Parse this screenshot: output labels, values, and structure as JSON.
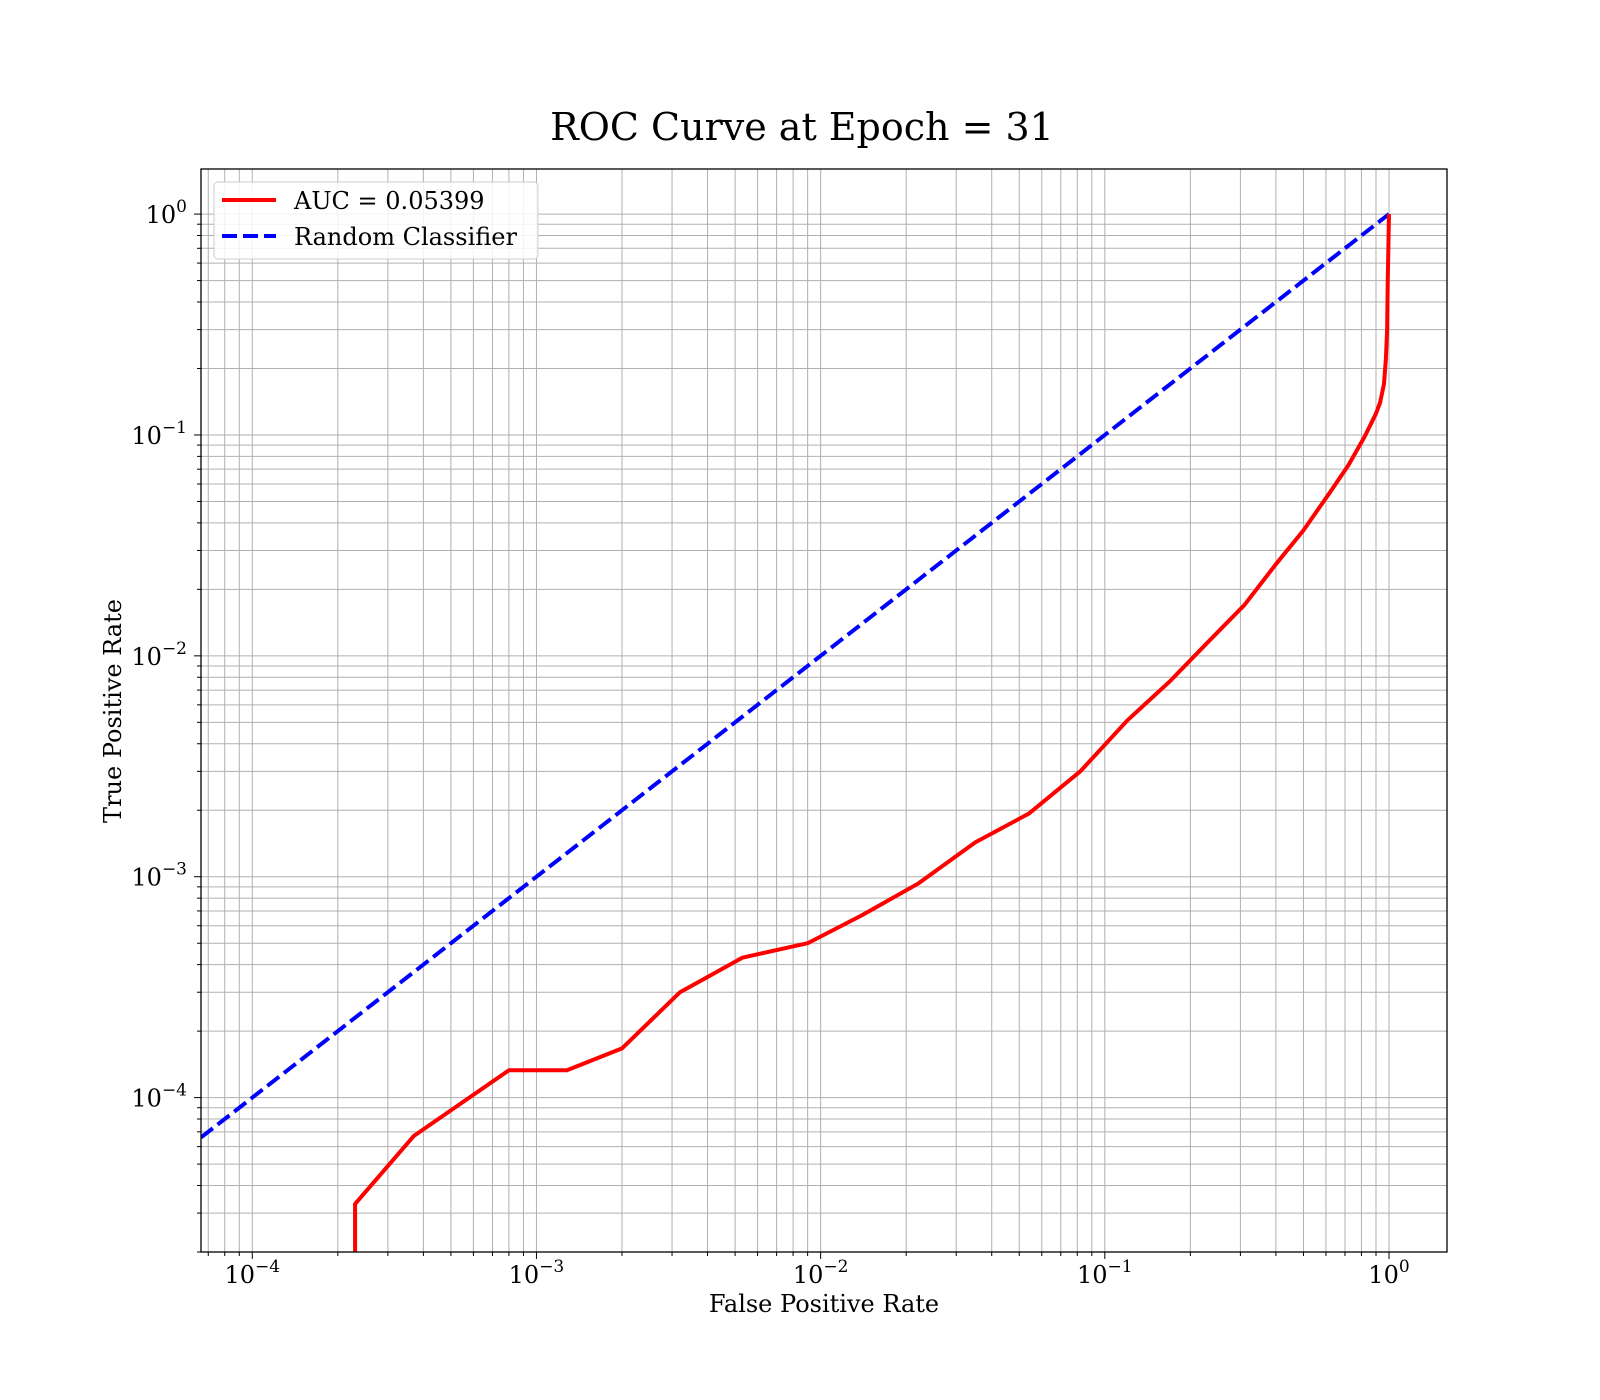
{
  "chart_data": {
    "type": "line",
    "title": "ROC Curve at Epoch = 31",
    "xlabel": "False Positive Rate",
    "ylabel": "True Positive Rate",
    "xscale": "log",
    "yscale": "log",
    "xlim": [
      6.6e-05,
      1.6
    ],
    "ylim": [
      2e-05,
      1.6
    ],
    "grid": true,
    "grid_which": "both",
    "legend_position": "top-left",
    "x_ticks": [
      {
        "value": 0.0001,
        "base": "10",
        "exp": "−4"
      },
      {
        "value": 0.001,
        "base": "10",
        "exp": "−3"
      },
      {
        "value": 0.01,
        "base": "10",
        "exp": "−2"
      },
      {
        "value": 0.1,
        "base": "10",
        "exp": "−1"
      },
      {
        "value": 1,
        "base": "10",
        "exp": "0"
      }
    ],
    "y_ticks": [
      {
        "value": 0.0001,
        "base": "10",
        "exp": "−4"
      },
      {
        "value": 0.001,
        "base": "10",
        "exp": "−3"
      },
      {
        "value": 0.01,
        "base": "10",
        "exp": "−2"
      },
      {
        "value": 0.1,
        "base": "10",
        "exp": "−1"
      },
      {
        "value": 1,
        "base": "10",
        "exp": "0"
      }
    ],
    "series": [
      {
        "name": "AUC = 0.05399",
        "color": "#ff0000",
        "style": "solid",
        "x": [
          0.00023,
          0.00023,
          0.00037,
          0.0008,
          0.00128,
          0.002,
          0.0032,
          0.0053,
          0.009,
          0.014,
          0.022,
          0.035,
          0.054,
          0.082,
          0.12,
          0.17,
          0.23,
          0.31,
          0.4,
          0.5,
          0.62,
          0.72,
          0.82,
          0.9,
          0.93,
          0.96,
          0.975,
          0.985,
          0.99,
          1.0
        ],
        "y": [
          2e-05,
          3.3e-05,
          6.7e-05,
          0.000133,
          0.000133,
          0.000167,
          0.0003,
          0.00043,
          0.0005,
          0.00067,
          0.00093,
          0.00143,
          0.00193,
          0.003,
          0.0051,
          0.0077,
          0.0115,
          0.017,
          0.026,
          0.037,
          0.055,
          0.073,
          0.098,
          0.125,
          0.14,
          0.17,
          0.22,
          0.3,
          0.5,
          1.0
        ]
      },
      {
        "name": "Random Classifier",
        "color": "#0000ff",
        "style": "dashed",
        "x": [
          6.6e-05,
          1.0
        ],
        "y": [
          6.6e-05,
          1.0
        ]
      }
    ]
  }
}
